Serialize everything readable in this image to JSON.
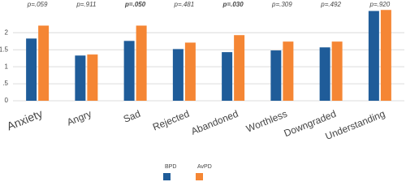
{
  "chart_data": {
    "type": "bar",
    "categories": [
      "Anxiety",
      "Angry",
      "Sad",
      "Rejected",
      "Abandoned",
      "Worthless",
      "Downgraded",
      "Understanding"
    ],
    "series": [
      {
        "name": "BPD",
        "color": "#1f5c99",
        "values": [
          1.83,
          1.33,
          1.76,
          1.52,
          1.43,
          1.48,
          1.57,
          2.64
        ]
      },
      {
        "name": "AvPD",
        "color": "#f58634",
        "values": [
          2.21,
          1.36,
          2.21,
          1.71,
          1.93,
          1.74,
          1.74,
          2.67
        ]
      }
    ],
    "annotations": [
      {
        "text": "p=.059",
        "bold": false
      },
      {
        "text": "p=.911",
        "bold": false
      },
      {
        "text": "p=.050",
        "bold": true
      },
      {
        "text": "p=.481",
        "bold": false
      },
      {
        "text": "p=.030",
        "bold": true
      },
      {
        "text": "p=.309",
        "bold": false
      },
      {
        "text": "p=.492",
        "bold": false
      },
      {
        "text": "p=.920",
        "bold": false
      }
    ],
    "ylim": [
      0,
      2.7
    ],
    "yticks": [
      0,
      {
        "value": 0.5,
        "label": ".5"
      },
      1,
      1.5,
      2
    ],
    "grid": true
  }
}
